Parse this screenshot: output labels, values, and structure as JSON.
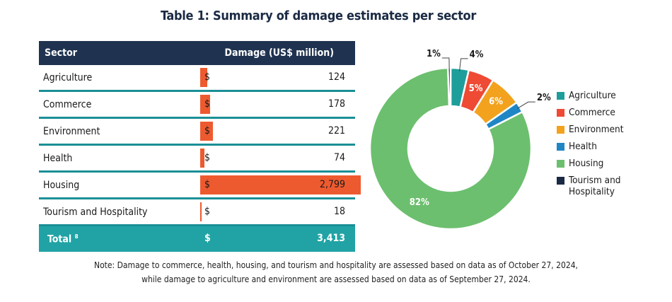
{
  "title": "Table 1: Summary of damage estimates per sector",
  "table": {
    "headers": [
      "Sector",
      "Damage (US$ million)"
    ],
    "currency": "$",
    "rows": [
      {
        "sector": "Agriculture",
        "value": 124,
        "display": "124"
      },
      {
        "sector": "Commerce",
        "value": 178,
        "display": "178"
      },
      {
        "sector": "Environment",
        "value": 221,
        "display": "221"
      },
      {
        "sector": "Health",
        "value": 74,
        "display": "74"
      },
      {
        "sector": "Housing",
        "value": 2799,
        "display": "2,799"
      },
      {
        "sector": "Tourism and Hospitality",
        "value": 18,
        "display": "18"
      }
    ],
    "total": {
      "label": "Total",
      "footnote": "8",
      "display": "3,413"
    }
  },
  "chart_data": {
    "type": "pie",
    "subtype": "donut",
    "series": [
      {
        "name": "Agriculture",
        "value": 124,
        "label": "4%",
        "color": "#1e9e9a"
      },
      {
        "name": "Commerce",
        "value": 178,
        "label": "5%",
        "color": "#ee4a34"
      },
      {
        "name": "Environment",
        "value": 221,
        "label": "6%",
        "color": "#f3a21e"
      },
      {
        "name": "Health",
        "value": 74,
        "label": "2%",
        "color": "#1f86c6"
      },
      {
        "name": "Housing",
        "value": 2799,
        "label": "82%",
        "color": "#6cbf6e"
      },
      {
        "name": "Tourism and Hospitality",
        "value": 18,
        "label": "1%",
        "color": "#1b2a44"
      }
    ],
    "legend_position": "right"
  },
  "note": [
    "Note: Damage to commerce, health, housing, and tourism and hospitality are assessed based on data as of October 27, 2024,",
    "while damage to agriculture and environment are assessed based on data as of September 27, 2024."
  ]
}
